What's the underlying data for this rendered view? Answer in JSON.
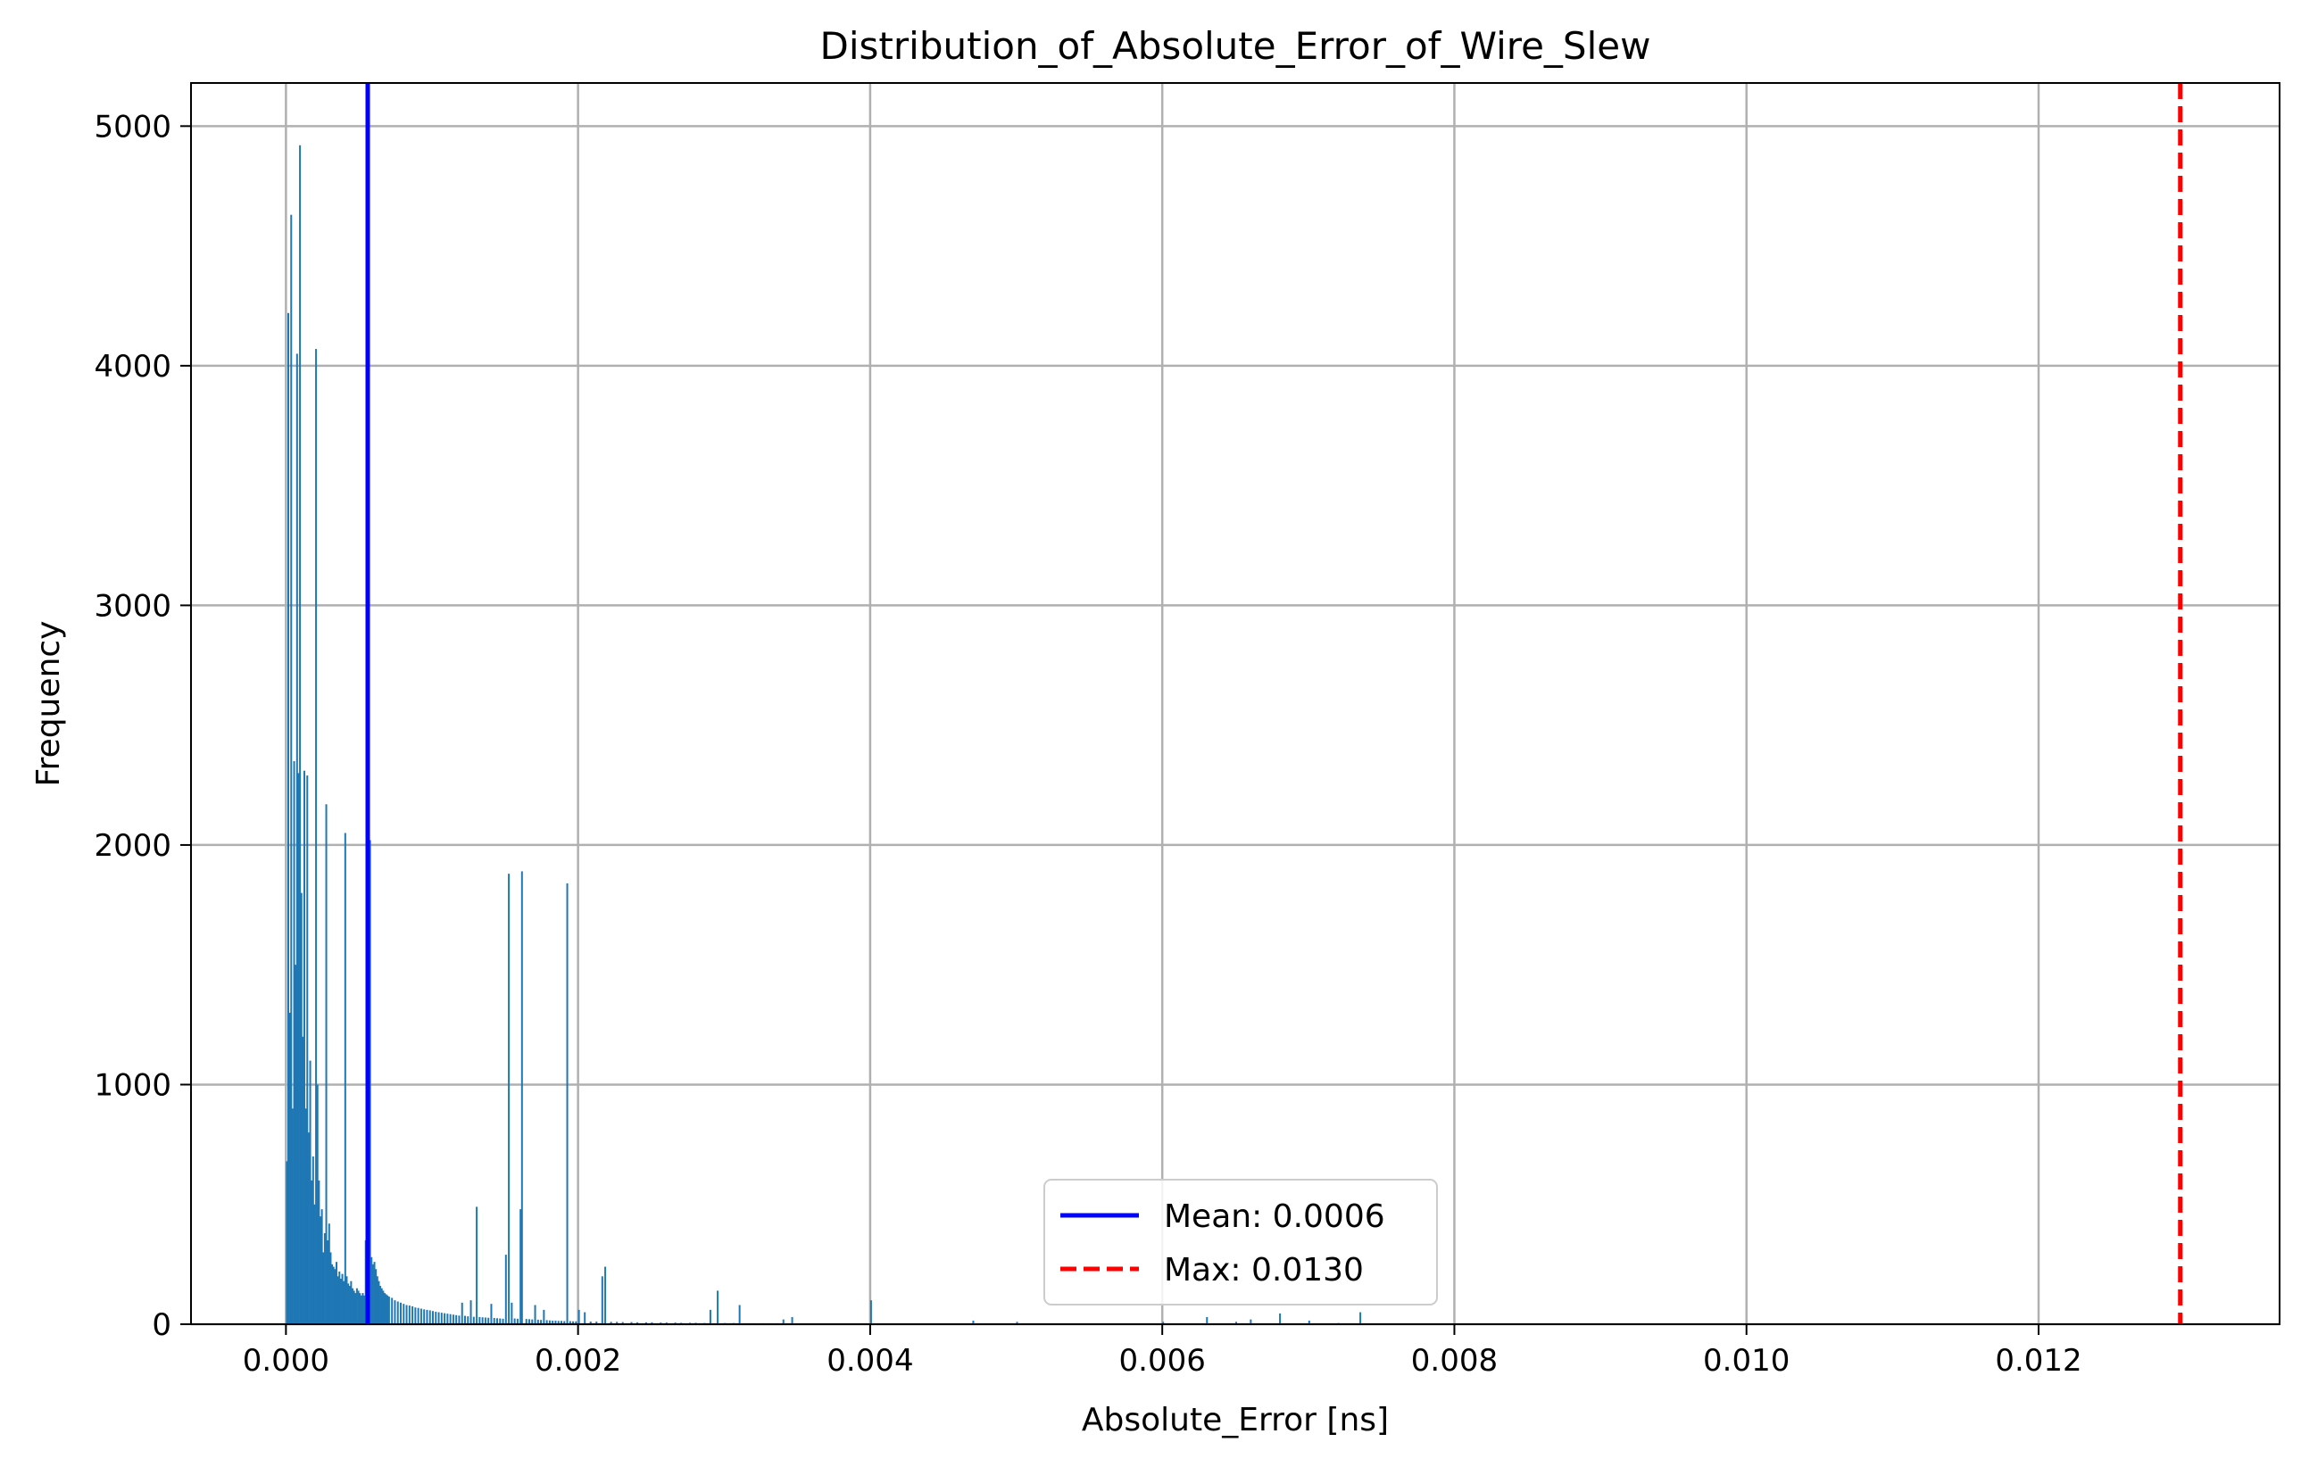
{
  "chart_data": {
    "type": "bar",
    "title": "Distribution_of_Absolute_Error_of_Wire_Slew",
    "xlabel": "Absolute_Error [ns]",
    "ylabel": "Frequency",
    "xlim": [
      -0.00065,
      0.01365
    ],
    "ylim": [
      0,
      5180
    ],
    "grid": true,
    "legend_position": "lower center",
    "x_ticks": [
      0.0,
      0.002,
      0.004,
      0.006,
      0.008,
      0.01,
      0.012
    ],
    "x_tick_labels": [
      "0.000",
      "0.002",
      "0.004",
      "0.006",
      "0.008",
      "0.010",
      "0.012"
    ],
    "y_ticks": [
      0,
      1000,
      2000,
      3000,
      4000,
      5000
    ],
    "y_tick_labels": [
      "0",
      "1000",
      "2000",
      "3000",
      "4000",
      "5000"
    ],
    "bar_color": "#1f77b4",
    "bar_width": 1e-05,
    "bins": [
      [
        0.0,
        680
      ],
      [
        1e-05,
        4220
      ],
      [
        2e-05,
        1300
      ],
      [
        3e-05,
        4630
      ],
      [
        4e-05,
        900
      ],
      [
        5e-05,
        2350
      ],
      [
        6e-05,
        1500
      ],
      [
        7e-05,
        4050
      ],
      [
        8e-05,
        2300
      ],
      [
        9e-05,
        4920
      ],
      [
        0.0001,
        1800
      ],
      [
        0.00011,
        1200
      ],
      [
        0.00012,
        2310
      ],
      [
        0.00013,
        900
      ],
      [
        0.00014,
        2290
      ],
      [
        0.00015,
        800
      ],
      [
        0.00016,
        1100
      ],
      [
        0.00017,
        600
      ],
      [
        0.00018,
        700
      ],
      [
        0.00019,
        500
      ],
      [
        0.0002,
        4070
      ],
      [
        0.00021,
        1000
      ],
      [
        0.00022,
        600
      ],
      [
        0.00023,
        450
      ],
      [
        0.00024,
        480
      ],
      [
        0.00025,
        300
      ],
      [
        0.00026,
        380
      ],
      [
        0.00027,
        2170
      ],
      [
        0.00028,
        350
      ],
      [
        0.00029,
        420
      ],
      [
        0.0003,
        300
      ],
      [
        0.00031,
        250
      ],
      [
        0.00032,
        240
      ],
      [
        0.00033,
        230
      ],
      [
        0.00034,
        260
      ],
      [
        0.00035,
        200
      ],
      [
        0.00036,
        220
      ],
      [
        0.00037,
        190
      ],
      [
        0.00038,
        210
      ],
      [
        0.00039,
        180
      ],
      [
        0.0004,
        2050
      ],
      [
        0.00041,
        200
      ],
      [
        0.00042,
        170
      ],
      [
        0.00043,
        160
      ],
      [
        0.00044,
        180
      ],
      [
        0.00045,
        150
      ],
      [
        0.00046,
        140
      ],
      [
        0.00047,
        130
      ],
      [
        0.00048,
        150
      ],
      [
        0.00049,
        140
      ],
      [
        0.0005,
        130
      ],
      [
        0.00051,
        120
      ],
      [
        0.00052,
        130
      ],
      [
        0.00053,
        120
      ],
      [
        0.00054,
        350
      ],
      [
        0.00055,
        110
      ],
      [
        0.00056,
        120
      ],
      [
        0.00057,
        2020
      ],
      [
        0.00058,
        280
      ],
      [
        0.00059,
        250
      ],
      [
        0.0006,
        260
      ],
      [
        0.00061,
        230
      ],
      [
        0.00062,
        200
      ],
      [
        0.00063,
        180
      ],
      [
        0.00064,
        160
      ],
      [
        0.00065,
        150
      ],
      [
        0.00066,
        140
      ],
      [
        0.00067,
        130
      ],
      [
        0.00068,
        125
      ],
      [
        0.00069,
        120
      ],
      [
        0.0007,
        115
      ],
      [
        0.00072,
        110
      ],
      [
        0.00074,
        100
      ],
      [
        0.00076,
        95
      ],
      [
        0.00078,
        90
      ],
      [
        0.0008,
        85
      ],
      [
        0.00082,
        80
      ],
      [
        0.00084,
        78
      ],
      [
        0.00086,
        75
      ],
      [
        0.00088,
        70
      ],
      [
        0.0009,
        68
      ],
      [
        0.00092,
        65
      ],
      [
        0.00094,
        62
      ],
      [
        0.00096,
        60
      ],
      [
        0.00098,
        58
      ],
      [
        0.001,
        55
      ],
      [
        0.00102,
        52
      ],
      [
        0.00104,
        50
      ],
      [
        0.00106,
        48
      ],
      [
        0.00108,
        46
      ],
      [
        0.0011,
        44
      ],
      [
        0.00112,
        42
      ],
      [
        0.00114,
        40
      ],
      [
        0.00116,
        38
      ],
      [
        0.00118,
        36
      ],
      [
        0.0012,
        90
      ],
      [
        0.00122,
        35
      ],
      [
        0.00124,
        33
      ],
      [
        0.00126,
        100
      ],
      [
        0.00128,
        31
      ],
      [
        0.0013,
        490
      ],
      [
        0.00132,
        30
      ],
      [
        0.00134,
        29
      ],
      [
        0.00136,
        28
      ],
      [
        0.00138,
        27
      ],
      [
        0.0014,
        85
      ],
      [
        0.00142,
        26
      ],
      [
        0.00144,
        25
      ],
      [
        0.00146,
        24
      ],
      [
        0.00148,
        23
      ],
      [
        0.0015,
        290
      ],
      [
        0.00152,
        1880
      ],
      [
        0.00154,
        90
      ],
      [
        0.00156,
        24
      ],
      [
        0.00158,
        23
      ],
      [
        0.0016,
        480
      ],
      [
        0.00161,
        1890
      ],
      [
        0.00164,
        22
      ],
      [
        0.00166,
        21
      ],
      [
        0.00168,
        20
      ],
      [
        0.0017,
        80
      ],
      [
        0.00172,
        19
      ],
      [
        0.00174,
        18
      ],
      [
        0.00176,
        60
      ],
      [
        0.00178,
        17
      ],
      [
        0.0018,
        16
      ],
      [
        0.00182,
        15
      ],
      [
        0.00184,
        15
      ],
      [
        0.00186,
        14
      ],
      [
        0.00188,
        14
      ],
      [
        0.0019,
        13
      ],
      [
        0.00192,
        1840
      ],
      [
        0.00194,
        13
      ],
      [
        0.00196,
        12
      ],
      [
        0.00198,
        12
      ],
      [
        0.002,
        60
      ],
      [
        0.00204,
        50
      ],
      [
        0.00208,
        11
      ],
      [
        0.00212,
        11
      ],
      [
        0.00216,
        200
      ],
      [
        0.00218,
        240
      ],
      [
        0.00222,
        10
      ],
      [
        0.00226,
        10
      ],
      [
        0.0023,
        9
      ],
      [
        0.00236,
        9
      ],
      [
        0.0024,
        8
      ],
      [
        0.00246,
        8
      ],
      [
        0.0025,
        8
      ],
      [
        0.00256,
        7
      ],
      [
        0.0026,
        7
      ],
      [
        0.00266,
        7
      ],
      [
        0.0027,
        6
      ],
      [
        0.00276,
        6
      ],
      [
        0.0028,
        6
      ],
      [
        0.00286,
        5
      ],
      [
        0.0029,
        60
      ],
      [
        0.00295,
        140
      ],
      [
        0.003,
        5
      ],
      [
        0.00306,
        5
      ],
      [
        0.0031,
        80
      ],
      [
        0.00316,
        4
      ],
      [
        0.0032,
        4
      ],
      [
        0.00326,
        4
      ],
      [
        0.0033,
        4
      ],
      [
        0.00336,
        4
      ],
      [
        0.0034,
        20
      ],
      [
        0.00346,
        30
      ],
      [
        0.0035,
        3
      ],
      [
        0.0036,
        3
      ],
      [
        0.0037,
        3
      ],
      [
        0.0038,
        3
      ],
      [
        0.0039,
        3
      ],
      [
        0.004,
        100
      ],
      [
        0.0041,
        3
      ],
      [
        0.0042,
        2
      ],
      [
        0.0044,
        2
      ],
      [
        0.0046,
        2
      ],
      [
        0.0047,
        15
      ],
      [
        0.0048,
        2
      ],
      [
        0.005,
        10
      ],
      [
        0.0053,
        2
      ],
      [
        0.0056,
        2
      ],
      [
        0.006,
        10
      ],
      [
        0.0063,
        30
      ],
      [
        0.0065,
        10
      ],
      [
        0.0066,
        20
      ],
      [
        0.0068,
        45
      ],
      [
        0.007,
        15
      ],
      [
        0.0072,
        5
      ],
      [
        0.00735,
        50
      ],
      [
        0.0076,
        2
      ],
      [
        0.0078,
        2
      ]
    ],
    "reference_lines": [
      {
        "label": "Mean: 0.0006",
        "x": 0.00056,
        "color": "#0000ff",
        "style": "solid"
      },
      {
        "label": "Max: 0.0130",
        "x": 0.01297,
        "color": "#ff0000",
        "style": "dashed"
      }
    ]
  }
}
